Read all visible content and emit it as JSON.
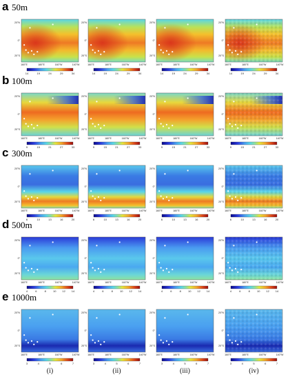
{
  "rows": [
    {
      "letter": "a",
      "depth": "50m",
      "ticks": [
        [
          "14",
          "19",
          "24",
          "29",
          "34"
        ],
        [
          "14",
          "19",
          "24",
          "29",
          "34"
        ],
        [
          "14",
          "19",
          "24",
          "29",
          "34"
        ],
        [
          "14",
          "19",
          "24",
          "29",
          "34"
        ]
      ]
    },
    {
      "letter": "b",
      "depth": "100m",
      "ticks": [
        [
          "9",
          "15",
          "21",
          "27",
          "33"
        ],
        [
          "9",
          "15",
          "21",
          "27",
          "33"
        ],
        [
          "9",
          "15",
          "21",
          "27",
          "33"
        ],
        [
          "9",
          "15",
          "21",
          "27",
          "33"
        ]
      ]
    },
    {
      "letter": "c",
      "depth": "300m",
      "ticks": [
        [
          "6",
          "10",
          "13",
          "16",
          "20"
        ],
        [
          "6",
          "10",
          "13",
          "16",
          "20"
        ],
        [
          "6",
          "10",
          "13",
          "16",
          "20"
        ],
        [
          "6",
          "10",
          "13",
          "16",
          "20"
        ]
      ]
    },
    {
      "letter": "d",
      "depth": "500m",
      "ticks": [
        [
          "4",
          "6",
          "8",
          "10",
          "12",
          "14"
        ],
        [
          "4",
          "6",
          "8",
          "10",
          "12",
          "14"
        ],
        [
          "4",
          "6",
          "8",
          "10",
          "12",
          "14"
        ],
        [
          "4",
          "6",
          "8",
          "10",
          "12",
          "14"
        ]
      ]
    },
    {
      "letter": "e",
      "depth": "1000m",
      "ticks": [
        [
          "3",
          "4",
          "5",
          "6",
          "7"
        ],
        [
          "3",
          "4",
          "5",
          "6",
          "7"
        ],
        [
          "3",
          "4",
          "5",
          "6",
          "7"
        ],
        [
          "3",
          "4",
          "5",
          "6",
          "7"
        ]
      ]
    }
  ],
  "lat_labels": [
    "20°N",
    "0°",
    "20°S"
  ],
  "lon_labels": [
    "160°E",
    "180°E",
    "160°W",
    "140°W"
  ],
  "columns": [
    "(i)",
    "(ii)",
    "(iii)",
    "(iv)"
  ],
  "colors": {
    "scale": [
      "#0a0a8c",
      "#2c3ce0",
      "#4aa0f0",
      "#5ad6e8",
      "#8ee2a0",
      "#e6e63c",
      "#f4a82c",
      "#e04a1c",
      "#9a1010"
    ]
  }
}
